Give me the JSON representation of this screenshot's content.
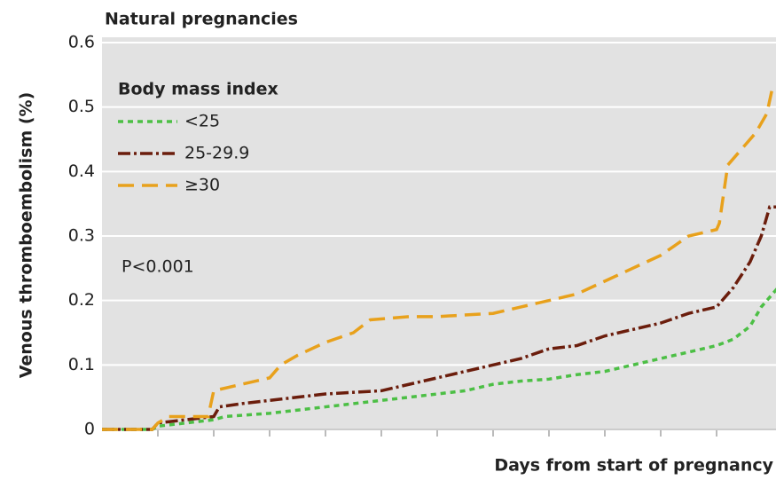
{
  "chart_data": {
    "type": "line",
    "title": "Natural pregnancies",
    "y_label": "Venous thromboembolism (%)",
    "x_label": "Days from start of pregnancy",
    "legend_title": "Body mass index",
    "annotation": "P<0.001",
    "ylim": [
      0,
      0.6
    ],
    "yticks": [
      0,
      0.1,
      0.2,
      0.3,
      0.4,
      0.5,
      0.6
    ],
    "xlim": [
      0,
      12
    ],
    "xticks": [
      1,
      2,
      3,
      4,
      5,
      6,
      7,
      8,
      9,
      10,
      11
    ],
    "grid": true,
    "legend": "upper left",
    "series": [
      {
        "name": "<25",
        "color": "#4cbf45",
        "dash": "6 5",
        "x": [
          0,
          0.9,
          1,
          1.5,
          2,
          2.2,
          3,
          3.5,
          4,
          4.5,
          5,
          5.5,
          6,
          6.5,
          7,
          7.5,
          8,
          8.5,
          9,
          9.5,
          10,
          10.5,
          11,
          11.3,
          11.6,
          11.8,
          12,
          12.1
        ],
        "values": [
          0,
          0,
          0.005,
          0.01,
          0.015,
          0.02,
          0.025,
          0.03,
          0.035,
          0.04,
          0.045,
          0.05,
          0.055,
          0.06,
          0.07,
          0.075,
          0.078,
          0.085,
          0.09,
          0.1,
          0.11,
          0.12,
          0.13,
          0.14,
          0.16,
          0.19,
          0.21,
          0.22
        ]
      },
      {
        "name": "25-29.9",
        "color": "#6b1d0c",
        "dash": "14 4 3 4",
        "x": [
          0,
          0.9,
          1,
          1.5,
          2,
          2.1,
          2.5,
          3,
          3.5,
          4,
          5,
          5.5,
          6,
          6.5,
          7,
          7.5,
          8,
          8.5,
          9,
          9.5,
          10,
          10.5,
          11,
          11.3,
          11.6,
          11.8,
          11.95,
          12.1
        ],
        "values": [
          0,
          0,
          0.01,
          0.015,
          0.02,
          0.035,
          0.04,
          0.045,
          0.05,
          0.055,
          0.06,
          0.07,
          0.08,
          0.09,
          0.1,
          0.11,
          0.125,
          0.13,
          0.145,
          0.155,
          0.165,
          0.18,
          0.19,
          0.22,
          0.26,
          0.3,
          0.345,
          0.345
        ]
      },
      {
        "name": "≥30",
        "color": "#e8a11c",
        "dash": "18 9",
        "x": [
          0,
          0.9,
          1,
          1.2,
          1.9,
          2,
          2.5,
          3,
          3.2,
          3.5,
          4,
          4.5,
          4.8,
          5.5,
          6,
          7,
          7.5,
          8,
          8.5,
          9,
          9.5,
          10,
          10.5,
          11,
          11.05,
          11.2,
          11.5,
          11.7,
          11.9,
          12
        ],
        "values": [
          0,
          0,
          0.01,
          0.02,
          0.02,
          0.06,
          0.07,
          0.08,
          0.1,
          0.115,
          0.135,
          0.15,
          0.17,
          0.175,
          0.175,
          0.18,
          0.19,
          0.2,
          0.21,
          0.23,
          0.25,
          0.27,
          0.3,
          0.31,
          0.32,
          0.41,
          0.44,
          0.46,
          0.49,
          0.53
        ]
      }
    ]
  }
}
